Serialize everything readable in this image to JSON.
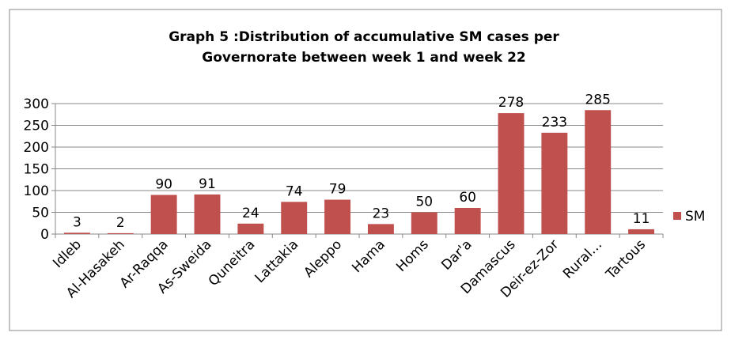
{
  "chart_data": {
    "type": "bar",
    "title": [
      "Graph 5 :Distribution of  accumulative SM cases per",
      "Governorate between week 1 and week 22"
    ],
    "categories": [
      "Idleb",
      "Al-Hasakeh",
      "Ar-Raqqa",
      "As-Sweida",
      "Quneitra",
      "Lattakia",
      "Aleppo",
      "Hama",
      "Homs",
      "Dar'a",
      "Damascus",
      "Deir-ez-Zor",
      "Rural…",
      "Tartous"
    ],
    "series": [
      {
        "name": "SM",
        "color": "#c0504d",
        "values": [
          3,
          2,
          90,
          91,
          24,
          74,
          79,
          23,
          50,
          60,
          278,
          233,
          285,
          11
        ]
      }
    ],
    "ylim": [
      0,
      300
    ],
    "yticks": [
      0,
      50,
      100,
      150,
      200,
      250,
      300
    ],
    "grid": true,
    "legend": "right"
  }
}
